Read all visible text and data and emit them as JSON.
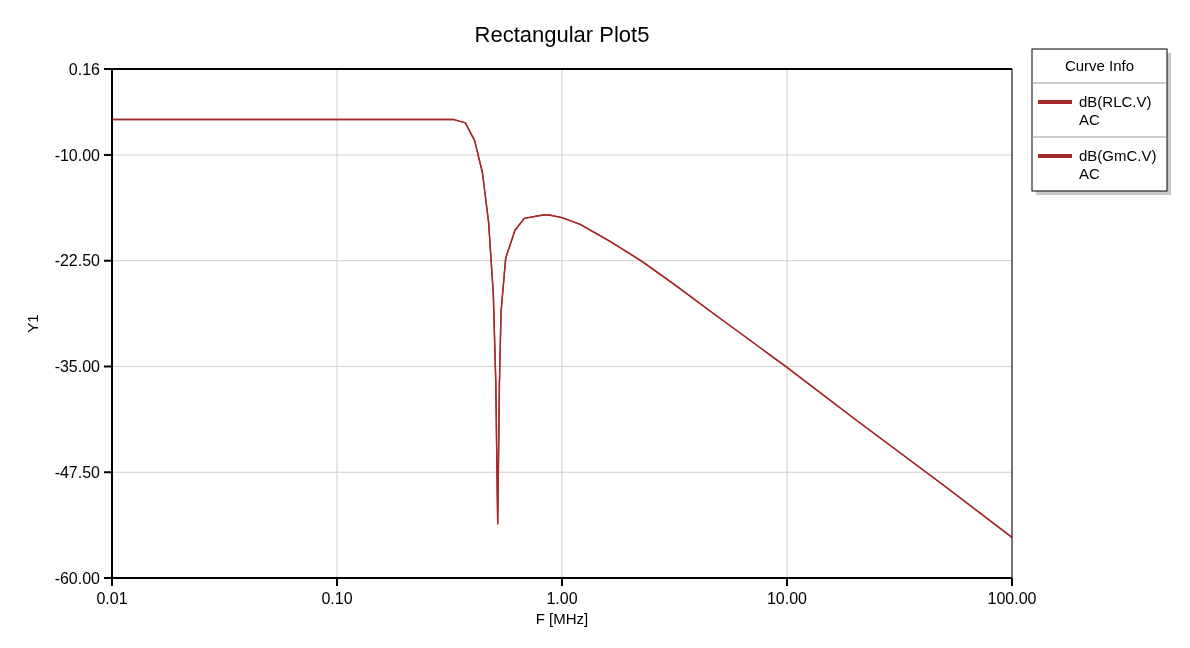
{
  "chart_data": {
    "type": "line",
    "title": "Rectangular Plot5",
    "xlabel": "F [MHz]",
    "ylabel": "Y1",
    "log": "x",
    "grid": true,
    "legend": "top right",
    "legend_title": "Curve Info",
    "line_style": "solid",
    "marker": "none",
    "xlim": [
      0.01,
      100
    ],
    "ylim": [
      -60,
      0.16
    ],
    "xticks": [
      {
        "value": 0.01,
        "label": "0.01"
      },
      {
        "value": 0.1,
        "label": "0.10"
      },
      {
        "value": 1,
        "label": "1.00"
      },
      {
        "value": 10,
        "label": "10.00"
      },
      {
        "value": 100,
        "label": "100.00"
      }
    ],
    "yticks": [
      0.16,
      {
        "value": -10,
        "label": "-10.00"
      },
      {
        "value": -22.5,
        "label": "-22.50"
      },
      {
        "value": -35,
        "label": "-35.00"
      },
      {
        "value": -47.5,
        "label": "-47.50"
      },
      {
        "value": -60,
        "label": "-60.00"
      }
    ],
    "x": [
      0.01,
      0.1,
      0.328,
      0.372,
      0.409,
      0.443,
      0.472,
      0.495,
      0.508,
      0.514,
      0.518,
      0.527,
      0.536,
      0.562,
      0.618,
      0.68,
      0.823,
      0.877,
      1.0,
      1.205,
      1.656,
      2.275,
      3.12,
      4.58,
      10,
      20,
      50,
      100
    ],
    "series": [
      {
        "name": "dB(RLC.V) AC",
        "color": "#a52a2a",
        "values": [
          -5.8,
          -5.8,
          -5.8,
          -6.2,
          -8.3,
          -12.1,
          -18.0,
          -26.4,
          -37.0,
          -47.5,
          -53.6,
          -37.0,
          -28.5,
          -22.2,
          -18.9,
          -17.5,
          -17.1,
          -17.1,
          -17.4,
          -18.2,
          -20.3,
          -22.6,
          -25.2,
          -28.5,
          -35.1,
          -41.2,
          -49.1,
          -55.2
        ]
      },
      {
        "name": "dB(GmC.V) AC",
        "color": "#a52a2a",
        "values": [
          -5.8,
          -5.8,
          -5.8,
          -6.2,
          -8.3,
          -12.1,
          -18.0,
          -26.4,
          -37.0,
          -47.5,
          -53.6,
          -37.0,
          -28.5,
          -22.2,
          -18.9,
          -17.5,
          -17.1,
          -17.1,
          -17.4,
          -18.2,
          -20.3,
          -22.6,
          -25.2,
          -28.5,
          -35.1,
          -41.2,
          -49.1,
          -55.2
        ]
      }
    ]
  }
}
